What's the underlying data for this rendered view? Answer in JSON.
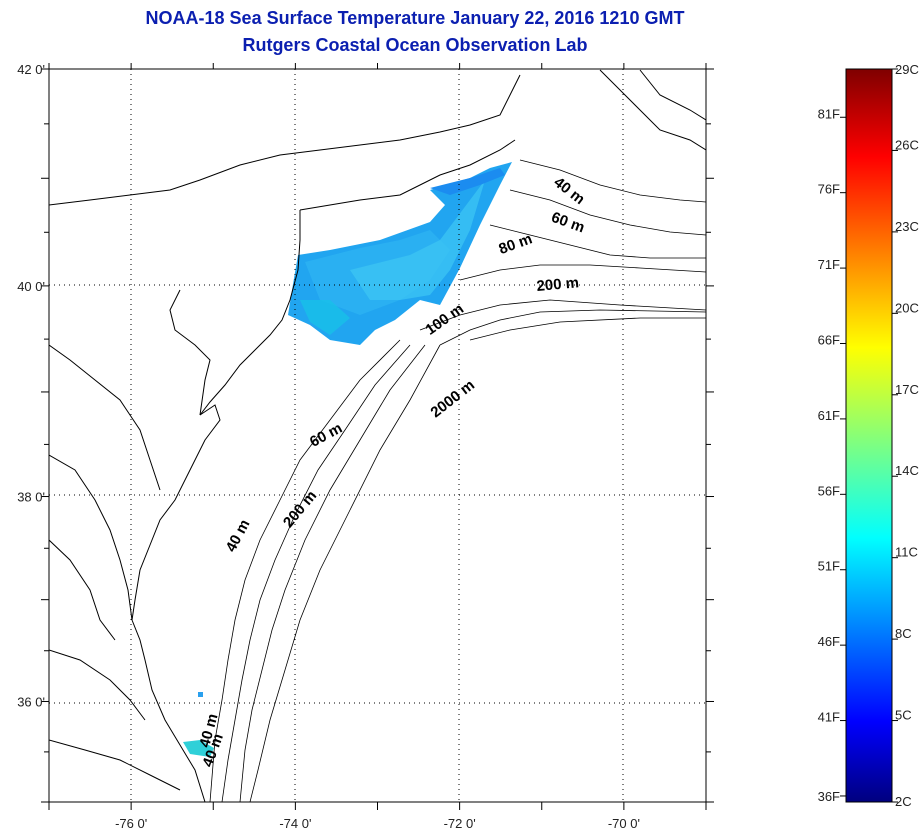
{
  "title": "NOAA-18 Sea Surface Temperature January 22, 2016 1210 GMT",
  "subtitle": "Rutgers Coastal Ocean Observation Lab",
  "map": {
    "lat_labels": [
      {
        "lat": 42,
        "text": "42 0'"
      },
      {
        "lat": 40,
        "text": "40 0'"
      },
      {
        "lat": 38,
        "text": "38 0'"
      },
      {
        "lat": 36,
        "text": "36 0'"
      }
    ],
    "lon_labels": [
      {
        "lon": -76,
        "text": "-76 0'"
      },
      {
        "lon": -74,
        "text": "-74 0'"
      },
      {
        "lon": -72,
        "text": "-72 0'"
      },
      {
        "lon": -70,
        "text": "-70 0'"
      }
    ],
    "contour_labels": [
      {
        "text": "40 m",
        "lon": -70.7,
        "lat": 40.85,
        "rot": 38
      },
      {
        "text": "60 m",
        "lon": -70.7,
        "lat": 40.55,
        "rot": 20
      },
      {
        "text": "80 m",
        "lon": -71.3,
        "lat": 40.35,
        "rot": -20
      },
      {
        "text": "200 m",
        "lon": -70.8,
        "lat": 39.97,
        "rot": -5
      },
      {
        "text": "100 m",
        "lon": -72.15,
        "lat": 39.65,
        "rot": -35
      },
      {
        "text": "2000 m",
        "lon": -72.05,
        "lat": 38.9,
        "rot": -38
      },
      {
        "text": "60 m",
        "lon": -73.6,
        "lat": 38.55,
        "rot": -28
      },
      {
        "text": "200 m",
        "lon": -73.9,
        "lat": 37.85,
        "rot": -50
      },
      {
        "text": "40 m",
        "lon": -74.65,
        "lat": 37.6,
        "rot": -62
      },
      {
        "text": "40 m",
        "lon": -75.0,
        "lat": 35.7,
        "rot": -75
      },
      {
        "text": "40 m",
        "lon": -74.95,
        "lat": 35.5,
        "rot": -70
      }
    ]
  },
  "colorbar": {
    "celsius_labels": [
      "29C",
      "26C",
      "23C",
      "20C",
      "17C",
      "14C",
      "11C",
      "8C",
      "5C",
      "2C"
    ],
    "fahrenheit_labels": [
      "81F",
      "76F",
      "71F",
      "66F",
      "61F",
      "56F",
      "51F",
      "46F",
      "41F",
      "36F"
    ],
    "colors": {
      "low": "#00007f",
      "blue": "#0000ff",
      "cyan": "#00ffff",
      "yellow": "#ffff00",
      "red": "#ff0000",
      "high": "#7f0000"
    }
  }
}
